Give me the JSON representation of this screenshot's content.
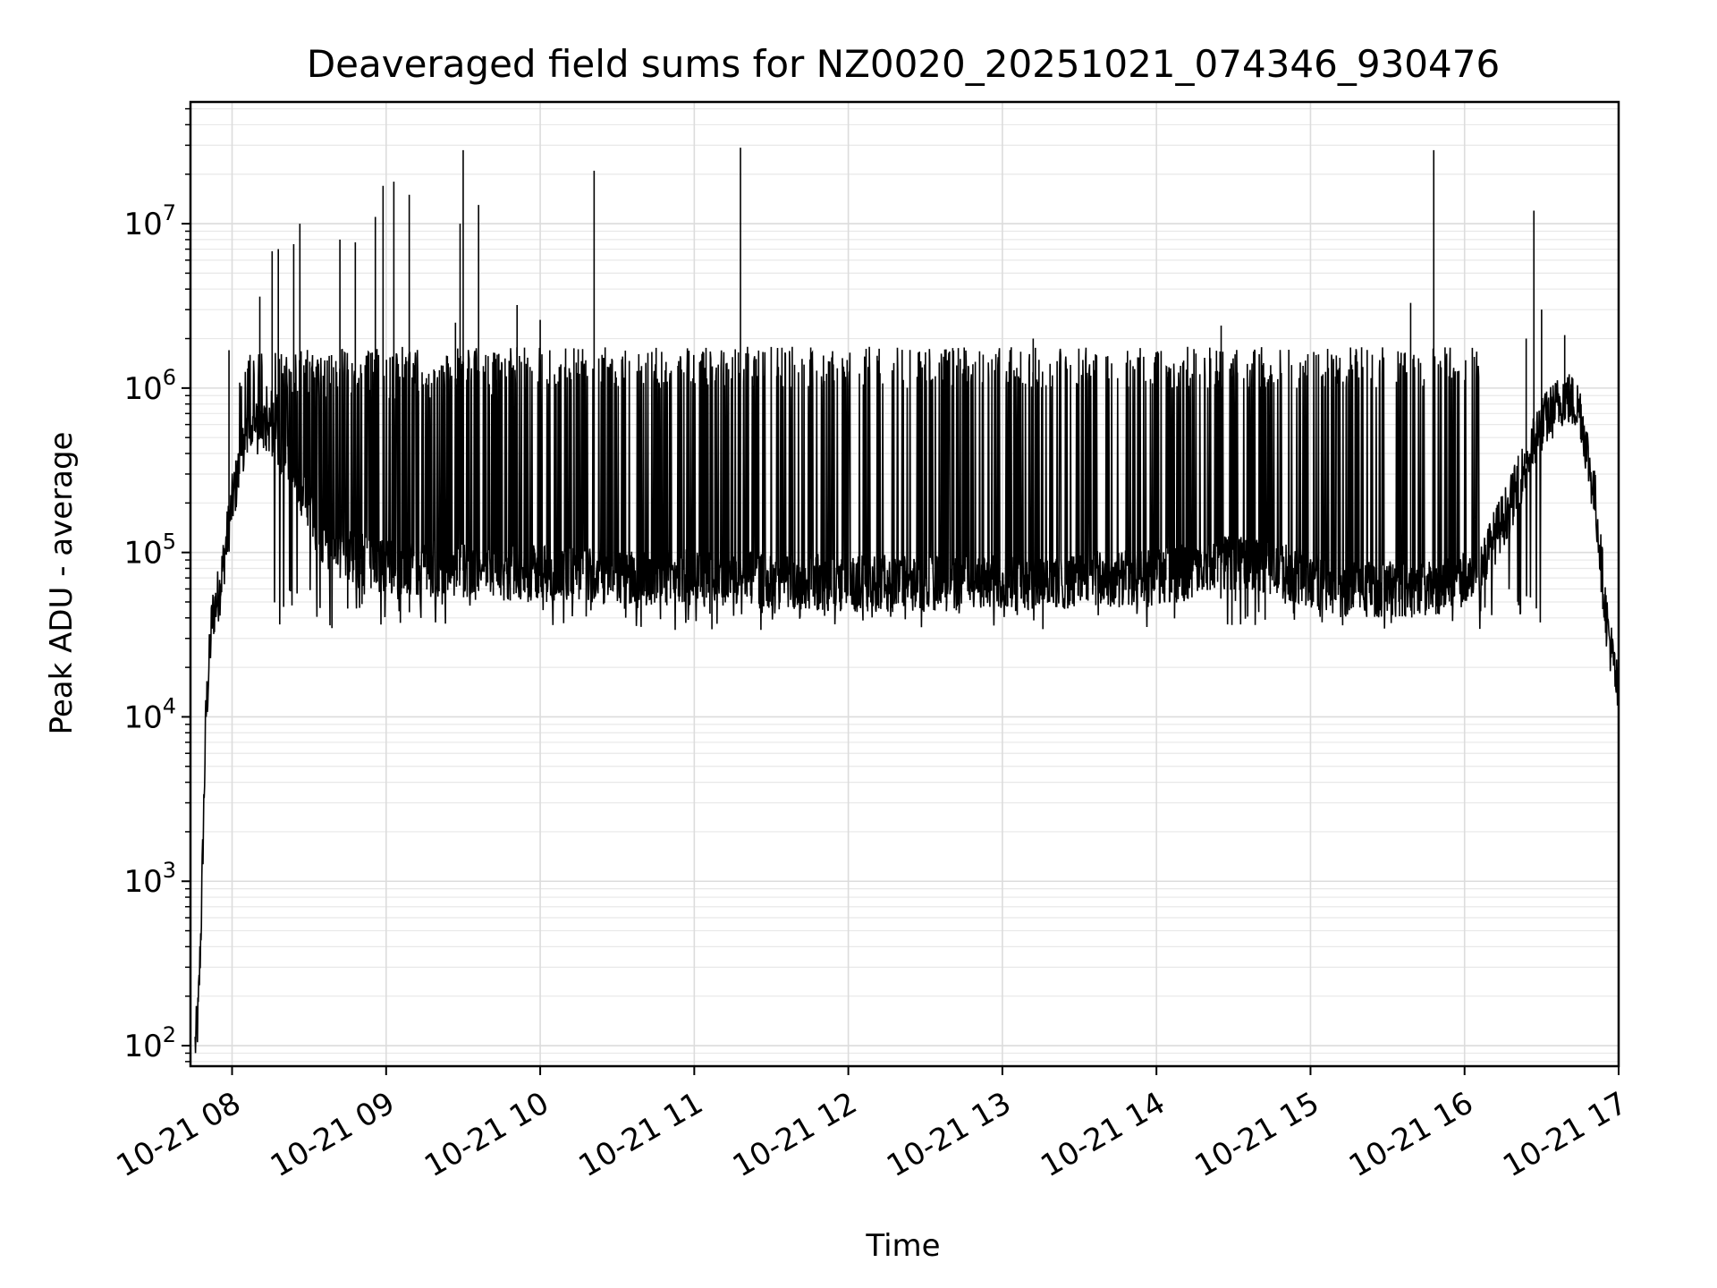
{
  "chart_data": {
    "type": "line",
    "title": "Deaveraged field sums for NZ0020_20251021_074346_930476",
    "xlabel": "Time",
    "ylabel": "Peak ADU - average",
    "y_scale": "log",
    "ylim": [
      75,
      55000000
    ],
    "xlim_hours": [
      7.73,
      17.0
    ],
    "grid": true,
    "line_color": "#000000",
    "x_ticks": [
      {
        "hour": 8,
        "label": "10-21 08"
      },
      {
        "hour": 9,
        "label": "10-21 09"
      },
      {
        "hour": 10,
        "label": "10-21 10"
      },
      {
        "hour": 11,
        "label": "10-21 11"
      },
      {
        "hour": 12,
        "label": "10-21 12"
      },
      {
        "hour": 13,
        "label": "10-21 13"
      },
      {
        "hour": 14,
        "label": "10-21 14"
      },
      {
        "hour": 15,
        "label": "10-21 15"
      },
      {
        "hour": 16,
        "label": "10-21 16"
      },
      {
        "hour": 17,
        "label": "10-21 17"
      }
    ],
    "y_ticks": [
      {
        "value": 100,
        "base": "10",
        "exp": "2"
      },
      {
        "value": 1000,
        "base": "10",
        "exp": "3"
      },
      {
        "value": 10000,
        "base": "10",
        "exp": "4"
      },
      {
        "value": 100000,
        "base": "10",
        "exp": "5"
      },
      {
        "value": 1000000,
        "base": "10",
        "exp": "6"
      },
      {
        "value": 10000000,
        "base": "10",
        "exp": "7"
      }
    ],
    "baseline_profile": [
      [
        7.76,
        100
      ],
      [
        7.78,
        150
      ],
      [
        7.8,
        600
      ],
      [
        7.83,
        10000
      ],
      [
        7.87,
        40000
      ],
      [
        7.92,
        60000
      ],
      [
        8.0,
        200000
      ],
      [
        8.1,
        550000
      ],
      [
        8.25,
        600000
      ],
      [
        8.4,
        300000
      ],
      [
        8.55,
        130000
      ],
      [
        8.8,
        90000
      ],
      [
        9.2,
        80000
      ],
      [
        9.8,
        75000
      ],
      [
        11.0,
        70000
      ],
      [
        12.0,
        65000
      ],
      [
        13.0,
        65000
      ],
      [
        14.0,
        70000
      ],
      [
        14.6,
        90000
      ],
      [
        15.2,
        60000
      ],
      [
        15.8,
        60000
      ],
      [
        16.1,
        80000
      ],
      [
        16.3,
        200000
      ],
      [
        16.5,
        600000
      ],
      [
        16.65,
        900000
      ],
      [
        16.75,
        750000
      ],
      [
        16.85,
        200000
      ],
      [
        16.92,
        40000
      ],
      [
        17.0,
        13000
      ]
    ],
    "spikes": [
      {
        "hour": 7.98,
        "value": 1700000
      },
      {
        "hour": 8.18,
        "value": 3600000
      },
      {
        "hour": 8.26,
        "value": 6800000
      },
      {
        "hour": 8.3,
        "value": 7000000
      },
      {
        "hour": 8.4,
        "value": 7500000
      },
      {
        "hour": 8.44,
        "value": 10000000
      },
      {
        "hour": 8.7,
        "value": 8000000
      },
      {
        "hour": 8.8,
        "value": 7700000
      },
      {
        "hour": 8.93,
        "value": 11000000
      },
      {
        "hour": 8.98,
        "value": 17000000
      },
      {
        "hour": 9.05,
        "value": 18000000
      },
      {
        "hour": 9.15,
        "value": 15000000
      },
      {
        "hour": 9.45,
        "value": 2500000
      },
      {
        "hour": 9.48,
        "value": 10000000
      },
      {
        "hour": 9.5,
        "value": 28000000
      },
      {
        "hour": 9.6,
        "value": 13000000
      },
      {
        "hour": 9.85,
        "value": 3200000
      },
      {
        "hour": 10.0,
        "value": 2600000
      },
      {
        "hour": 10.35,
        "value": 21000000
      },
      {
        "hour": 11.3,
        "value": 29000000
      },
      {
        "hour": 13.2,
        "value": 2000000
      },
      {
        "hour": 14.42,
        "value": 2400000
      },
      {
        "hour": 15.65,
        "value": 3300000
      },
      {
        "hour": 15.8,
        "value": 28000000
      },
      {
        "hour": 16.4,
        "value": 2000000
      },
      {
        "hour": 16.45,
        "value": 12000000
      },
      {
        "hour": 16.5,
        "value": 3000000
      },
      {
        "hour": 16.65,
        "value": 2100000
      }
    ],
    "noise_band": {
      "typical_high": 1500000,
      "typical_low": 45000,
      "start_hour": 8.3,
      "end_hour": 16.1
    }
  }
}
